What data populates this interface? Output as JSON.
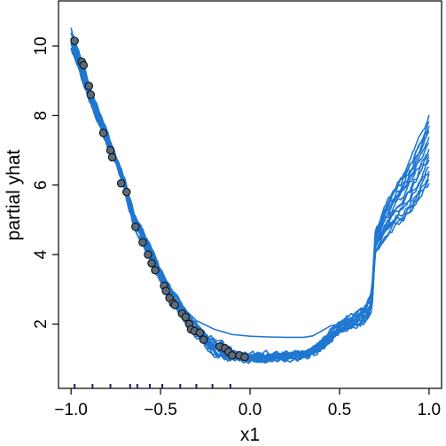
{
  "chart_data": {
    "type": "line",
    "xlabel": "x1",
    "ylabel": "partial yhat",
    "xlim": [
      -1.07,
      1.07
    ],
    "ylim": [
      0.15,
      11.3
    ],
    "xticks": [
      -1.0,
      -0.5,
      0.0,
      0.5,
      1.0
    ],
    "xtick_labels": [
      "−1.0",
      "−0.5",
      "0.0",
      "0.5",
      "1.0"
    ],
    "yticks": [
      2,
      4,
      6,
      8,
      10
    ],
    "ytick_labels": [
      "2",
      "4",
      "6",
      "8",
      "10"
    ],
    "grid": false,
    "legend": "none",
    "line_color": "#1f77d0",
    "point_color": "#5a6b7d",
    "rug_color": "#1a1a6e",
    "curve_count": 16,
    "curve_base": {
      "x": [
        -1.0,
        -0.95,
        -0.9,
        -0.85,
        -0.8,
        -0.75,
        -0.7,
        -0.68,
        -0.65,
        -0.6,
        -0.55,
        -0.5,
        -0.45,
        -0.4,
        -0.35,
        -0.3,
        -0.25,
        -0.2,
        -0.15,
        -0.1,
        -0.05,
        0.0,
        0.1,
        0.2,
        0.3,
        0.35,
        0.4,
        0.45,
        0.5,
        0.55,
        0.6,
        0.65,
        0.68,
        0.7,
        0.75,
        0.8,
        0.85,
        0.9,
        0.95,
        1.0
      ],
      "y": [
        10.2,
        9.5,
        8.7,
        8.0,
        7.4,
        6.7,
        6.0,
        5.6,
        5.0,
        4.5,
        4.0,
        3.4,
        2.9,
        2.5,
        2.1,
        1.8,
        1.55,
        1.35,
        1.2,
        1.1,
        1.05,
        1.05,
        1.05,
        1.08,
        1.12,
        1.2,
        1.4,
        1.65,
        1.9,
        2.05,
        2.15,
        2.3,
        2.6,
        4.3,
        4.9,
        5.3,
        5.6,
        6.0,
        6.5,
        7.0
      ]
    },
    "curve_outlier": {
      "x": [
        -0.4,
        -0.3,
        -0.2,
        -0.1,
        0.0,
        0.1,
        0.2,
        0.3,
        0.35,
        0.4,
        0.45,
        0.5
      ],
      "y": [
        2.6,
        2.1,
        1.85,
        1.7,
        1.65,
        1.63,
        1.62,
        1.62,
        1.66,
        1.8,
        1.95,
        2.0
      ]
    },
    "points": {
      "x": [
        -0.98,
        -0.94,
        -0.93,
        -0.9,
        -0.89,
        -0.82,
        -0.78,
        -0.77,
        -0.72,
        -0.69,
        -0.64,
        -0.6,
        -0.57,
        -0.55,
        -0.53,
        -0.48,
        -0.47,
        -0.45,
        -0.43,
        -0.42,
        -0.38,
        -0.36,
        -0.34,
        -0.33,
        -0.31,
        -0.28,
        -0.26,
        -0.17,
        -0.14,
        -0.12,
        -0.1,
        -0.06,
        -0.03
      ],
      "y": [
        10.15,
        9.55,
        9.45,
        8.85,
        8.6,
        7.5,
        7.0,
        6.8,
        6.05,
        5.8,
        4.8,
        4.35,
        4.0,
        3.75,
        3.55,
        3.1,
        2.95,
        2.75,
        2.6,
        2.55,
        2.3,
        2.2,
        2.0,
        1.85,
        1.8,
        1.75,
        1.55,
        1.35,
        1.3,
        1.2,
        1.1,
        1.1,
        1.05
      ]
    },
    "rug_x": [
      -0.98,
      -0.88,
      -0.78,
      -0.67,
      -0.63,
      -0.56,
      -0.49,
      -0.39,
      -0.3,
      -0.21,
      -0.11
    ]
  }
}
